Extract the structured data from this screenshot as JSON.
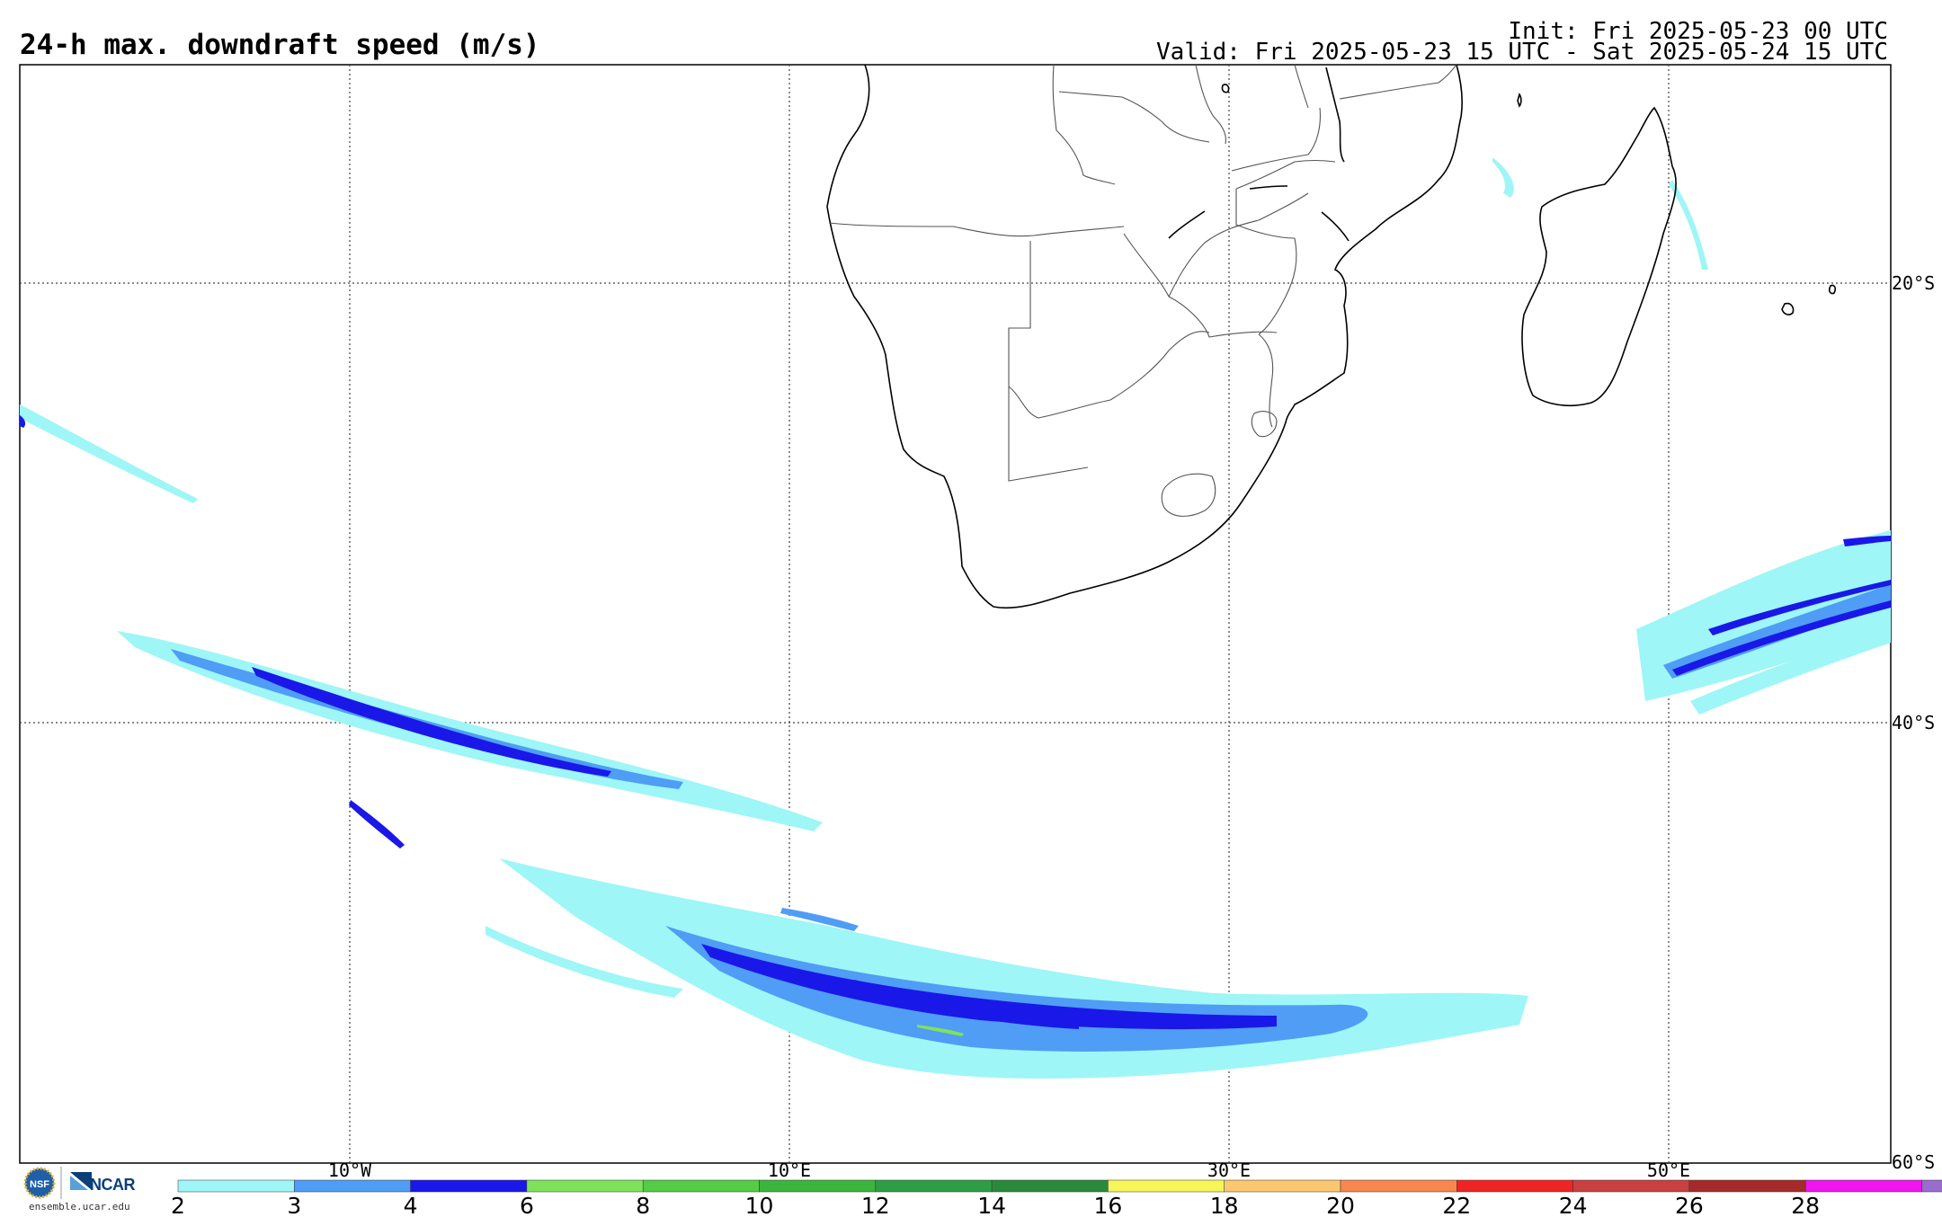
{
  "header": {
    "title": "24-h max. downdraft speed (m/s)",
    "init": "Init: Fri 2025-05-23 00 UTC",
    "valid": "Valid: Fri 2025-05-23 15 UTC - Sat 2025-05-24 15 UTC"
  },
  "map": {
    "lon_labels": [
      "10°W",
      "10°E",
      "30°E",
      "50°E"
    ],
    "lat_labels": [
      "20°S",
      "40°S",
      "60°S"
    ],
    "grid": "dotted"
  },
  "colorbar": {
    "ticks": [
      "2",
      "3",
      "4",
      "6",
      "8",
      "10",
      "12",
      "14",
      "16",
      "18",
      "20",
      "22",
      "24",
      "26",
      "28"
    ],
    "colors": [
      "#9ef6f6",
      "#4f9df5",
      "#1a18e8",
      "#7ee35a",
      "#55cc45",
      "#3cb53c",
      "#2e9e46",
      "#2a8a3c",
      "#f6f65a",
      "#fbc870",
      "#f8874e",
      "#ef2424",
      "#c94040",
      "#a52a2a",
      "#f014f0",
      "#9a6ccd"
    ]
  },
  "logo": {
    "org": "NCAR",
    "url": "ensemble.ucar.edu"
  }
}
